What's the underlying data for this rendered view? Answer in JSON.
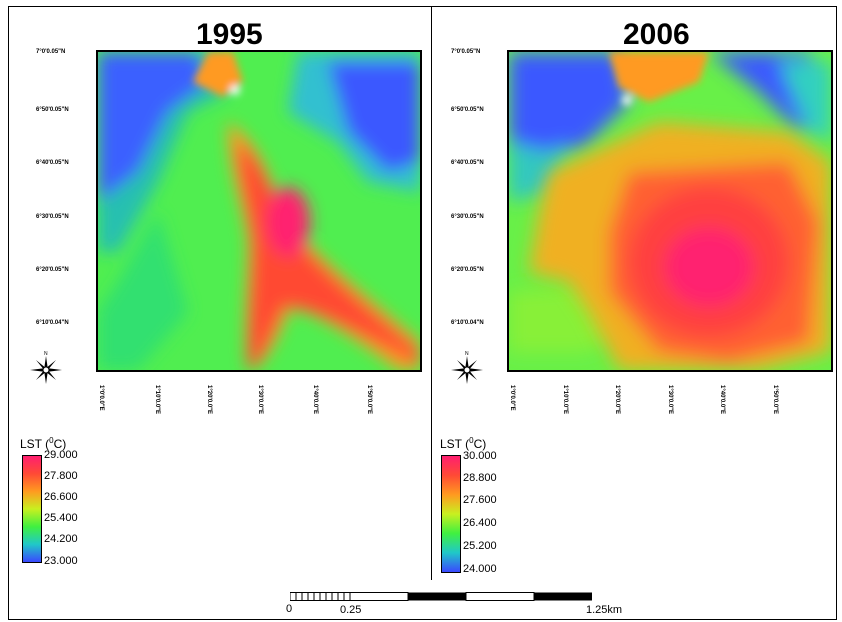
{
  "panels": [
    {
      "year": "1995",
      "legend_title": "LST (",
      "legend_unit": "0",
      "legend_unit_tail": "C)",
      "legend_values": [
        "29.000",
        "27.800",
        "26.600",
        "25.400",
        "24.200",
        "23.000"
      ],
      "lat_labels": [
        "7°0'0.05\"N",
        "6°50'0.05\"N",
        "6°40'0.05\"N",
        "6°30'0.05\"N",
        "6°20'0.05\"N",
        "6°10'0.04\"N"
      ],
      "lon_labels": [
        "1°0'0.0\"E",
        "1°10'0.0\"E",
        "1°20'0.0\"E",
        "1°30'0.0\"E",
        "1°40'0.0\"E",
        "1°50'0.0\"E"
      ]
    },
    {
      "year": "2006",
      "legend_title": "LST (",
      "legend_unit": "0",
      "legend_unit_tail": "C)",
      "legend_values": [
        "30.000",
        "28.800",
        "27.600",
        "26.400",
        "25.200",
        "24.000"
      ],
      "lat_labels": [
        "7°0'0.05\"N",
        "6°50'0.05\"N",
        "6°40'0.05\"N",
        "6°30'0.05\"N",
        "6°20'0.05\"N",
        "6°10'0.04\"N"
      ],
      "lon_labels": [
        "1°0'0.0\"E",
        "1°10'0.0\"E",
        "1°20'0.0\"E",
        "1°30'0.0\"E",
        "1°40'0.0\"E",
        "1°50'0.0\"E"
      ]
    }
  ],
  "scale": {
    "labels": [
      "0",
      "0.25",
      "1.25km"
    ]
  },
  "colors": {
    "hot": "#ff1f6a",
    "warm": "#ff5030",
    "orange": "#ffa020",
    "yellow": "#d8f020",
    "green": "#40f040",
    "cyan": "#20c8c8",
    "blue": "#3a48ff"
  }
}
